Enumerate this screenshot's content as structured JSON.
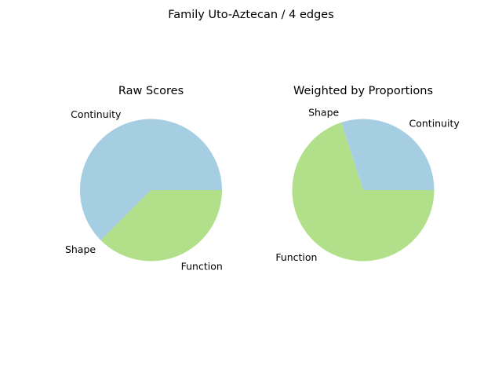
{
  "figure": {
    "suptitle": "Family Uto-Aztecan / 4 edges"
  },
  "colors": {
    "Continuity": "#a6cee3",
    "Shape": "#b2df8a",
    "Function": "#b2df8a"
  },
  "chart_data": [
    {
      "type": "pie",
      "title": "Raw Scores",
      "start_angle_deg": 0,
      "direction": "counterclockwise",
      "slices": [
        {
          "label": "Continuity",
          "value": 0.625
        },
        {
          "label": "Shape",
          "value": 0.0
        },
        {
          "label": "Function",
          "value": 0.375
        }
      ]
    },
    {
      "type": "pie",
      "title": "Weighted by Proportions",
      "start_angle_deg": 0,
      "direction": "counterclockwise",
      "slices": [
        {
          "label": "Continuity",
          "value": 0.3
        },
        {
          "label": "Shape",
          "value": 0.0
        },
        {
          "label": "Function",
          "value": 0.7
        }
      ]
    }
  ]
}
